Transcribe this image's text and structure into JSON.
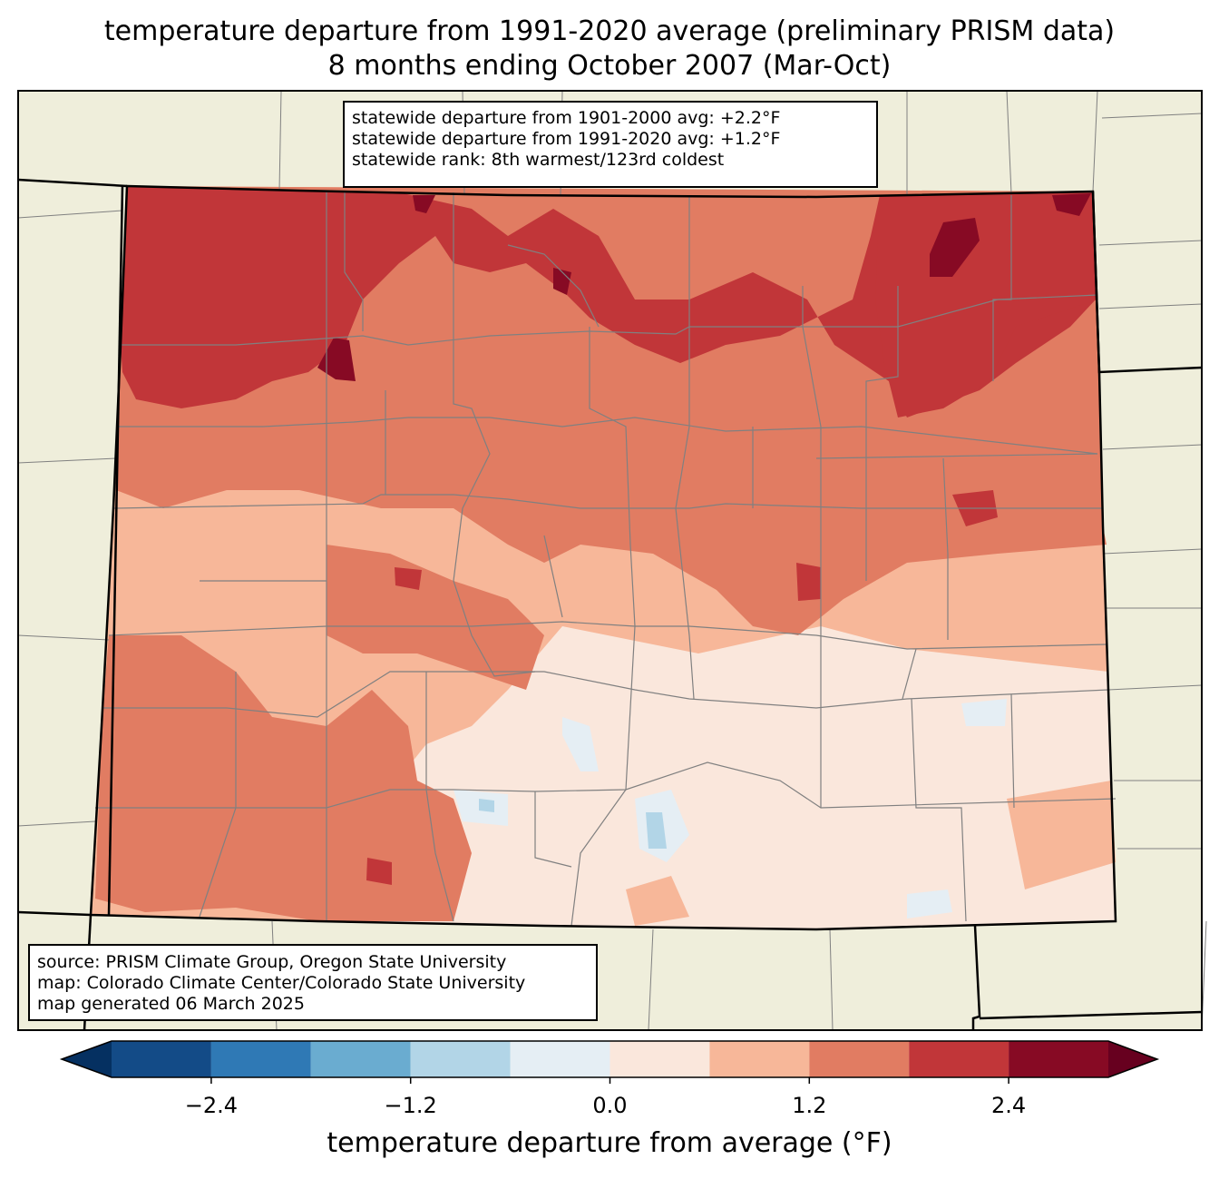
{
  "title": {
    "line1": "temperature departure from 1991-2020 average (preliminary PRISM data)",
    "line2": "8 months ending October 2007 (Mar-Oct)"
  },
  "stats": {
    "line1": "statewide departure from 1901-2000 avg: +2.2°F",
    "line2": "statewide departure from 1991-2020 avg: +1.2°F",
    "line3": "statewide rank: 8th warmest/123rd coldest"
  },
  "source": {
    "line1": "source: PRISM Climate Group, Oregon State University",
    "line2": "map: Colorado Climate Center/Colorado State University",
    "line3": "map generated 06 March 2025"
  },
  "colorbar": {
    "title": "temperature departure from average (°F)",
    "ticks": [
      "−2.4",
      "−1.2",
      "0.0",
      "1.2",
      "2.4"
    ],
    "tick_values": [
      -2.4,
      -1.2,
      0.0,
      1.2,
      2.4
    ],
    "min": -3.0,
    "max": 3.0,
    "bins": [
      {
        "from": -3.0,
        "to": -2.4,
        "color": "#134b87"
      },
      {
        "from": -2.4,
        "to": -1.8,
        "color": "#2f79b5"
      },
      {
        "from": -1.8,
        "to": -1.2,
        "color": "#6aacd0"
      },
      {
        "from": -1.2,
        "to": -0.6,
        "color": "#b2d5e7"
      },
      {
        "from": -0.6,
        "to": 0.0,
        "color": "#e5eef4"
      },
      {
        "from": 0.0,
        "to": 0.6,
        "color": "#fae7dc"
      },
      {
        "from": 0.6,
        "to": 1.2,
        "color": "#f7b799"
      },
      {
        "from": 1.2,
        "to": 1.8,
        "color": "#e17c62"
      },
      {
        "from": 1.8,
        "to": 2.4,
        "color": "#c13639"
      },
      {
        "from": 2.4,
        "to": 3.0,
        "color": "#870a24"
      }
    ],
    "extend_low_color": "#053061",
    "extend_high_color": "#67001f"
  },
  "map": {
    "land_color": "#efeedb",
    "county_line_color": "#808080",
    "state_line_color": "#000000"
  }
}
